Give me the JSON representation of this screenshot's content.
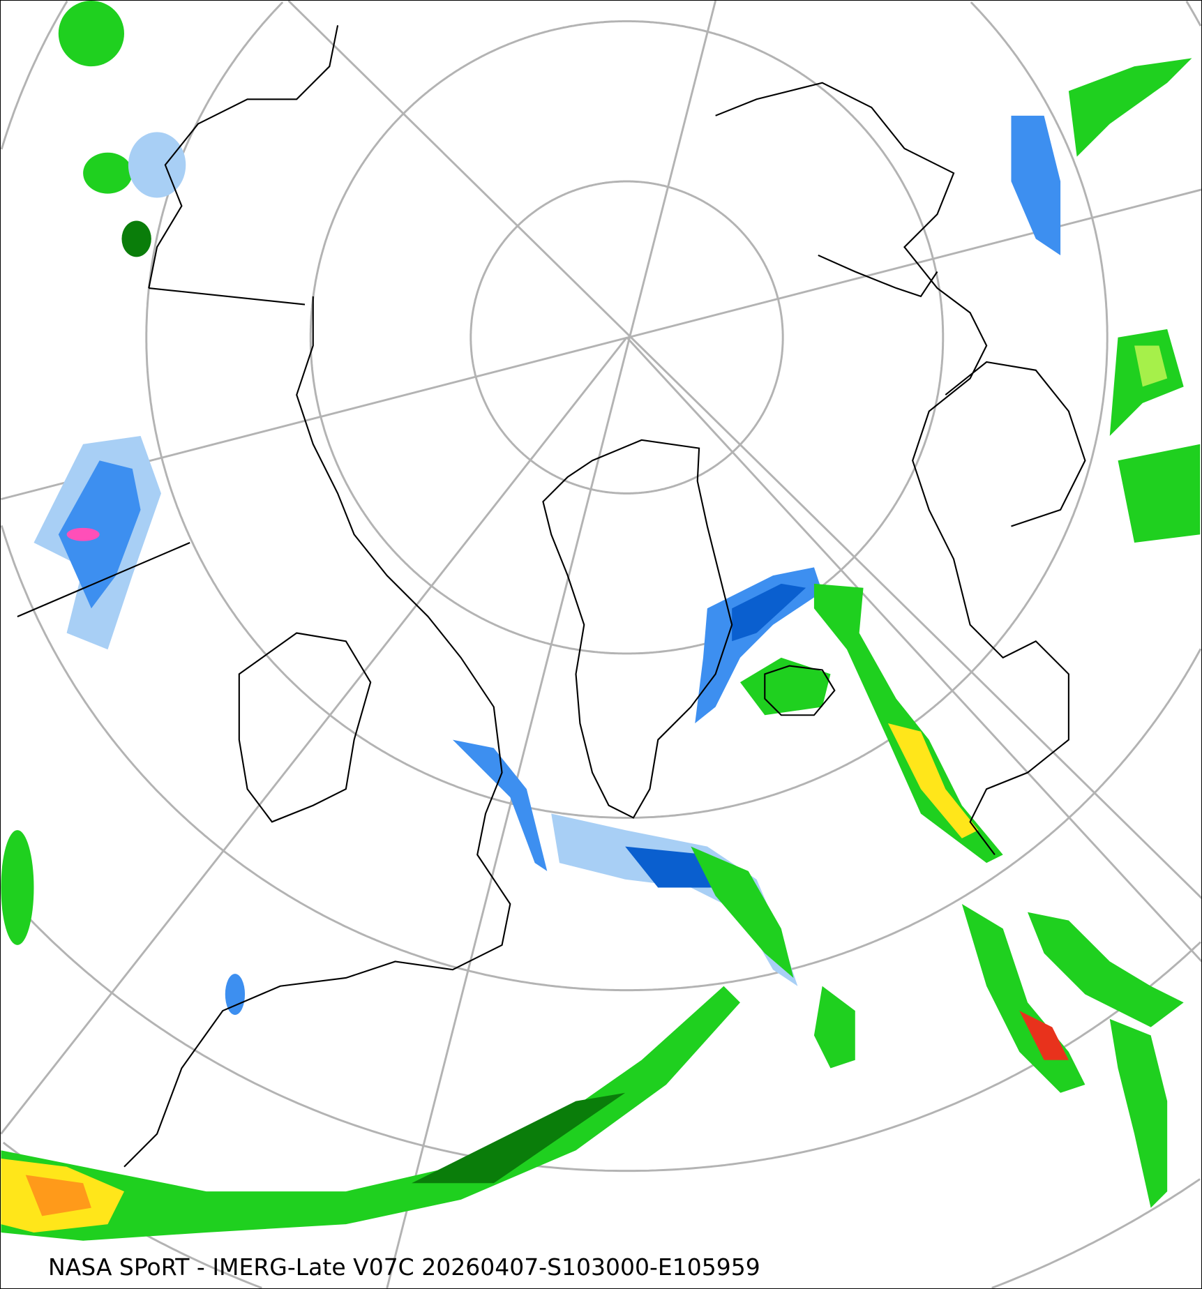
{
  "caption": "NASA SPoRT - IMERG-Late V07C 20260407-S103000-E105959",
  "map": {
    "projection": "polar stereographic, north pole centered",
    "graticule_color": "#b3b3b3",
    "coastline_color": "#000000",
    "precip_colors": {
      "light_blue": "#a8cff5",
      "blue": "#3d8ff0",
      "dark_blue": "#0a5fcf",
      "pink": "#ff4fb8",
      "dark_green": "#0a7d0a",
      "green": "#1fd01f",
      "light_green": "#a6f04a",
      "yellow": "#ffe61a",
      "orange": "#ff9a1a",
      "red": "#e8321c"
    }
  }
}
